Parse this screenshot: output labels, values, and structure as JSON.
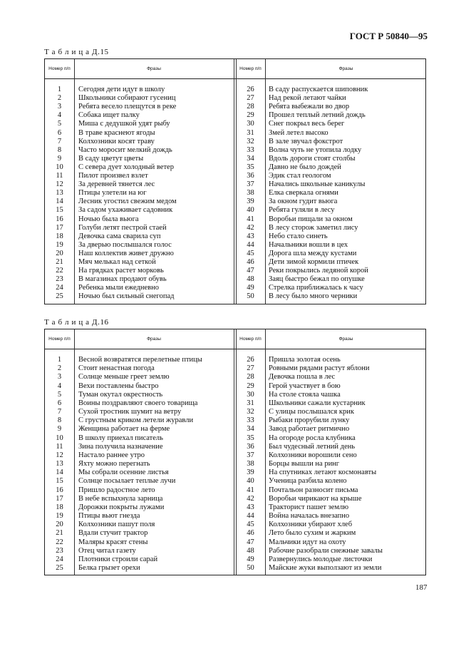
{
  "document_code": "ГОСТ Р 50840—95",
  "page_number": "187",
  "tables": [
    {
      "label": "Т а б л и ц а  Д.15",
      "col_num": "Номер п/п",
      "col_phrase": "Фразы",
      "rows": [
        [
          "1",
          "Сегодня дети идут в школу"
        ],
        [
          "2",
          "Школьники собирают гусениц"
        ],
        [
          "3",
          "Ребята весело плещутся в реке"
        ],
        [
          "4",
          "Собака ищет палку"
        ],
        [
          "5",
          "Миша с дедушкой удят рыбу"
        ],
        [
          "6",
          "В траве краснеют ягоды"
        ],
        [
          "7",
          "Колхозники косят траву"
        ],
        [
          "8",
          "Часто моросит мелкий дождь"
        ],
        [
          "9",
          "В саду цветут цветы"
        ],
        [
          "10",
          "С севера дует холодный ветер"
        ],
        [
          "11",
          "Пилот произвел взлет"
        ],
        [
          "12",
          "За деревней тянется лес"
        ],
        [
          "13",
          "Птицы улетели на юг"
        ],
        [
          "14",
          "Лесник угостил свежим медом"
        ],
        [
          "15",
          "За садом ухаживает садовник"
        ],
        [
          "16",
          "Ночью была вьюга"
        ],
        [
          "17",
          "Голуби летят пестрой стаей"
        ],
        [
          "18",
          "Девочка сама сварила суп"
        ],
        [
          "19",
          "За дверью послышался голос"
        ],
        [
          "20",
          "Наш коллектив живет дружно"
        ],
        [
          "21",
          "Мяч мелькал над сеткой"
        ],
        [
          "22",
          "На грядках растет морковь"
        ],
        [
          "23",
          "В магазинах продают обувь"
        ],
        [
          "24",
          "Ребенка мыли ежедневно"
        ],
        [
          "25",
          "Ночью был сильный снегопад"
        ],
        [
          "26",
          "В саду распускается шиповник"
        ],
        [
          "27",
          "Над рекой летают чайки"
        ],
        [
          "28",
          "Ребята выбежали во двор"
        ],
        [
          "29",
          "Прошел теплый летний дождь"
        ],
        [
          "30",
          "Снег покрыл весь берег"
        ],
        [
          "31",
          "Змей летел высоко"
        ],
        [
          "32",
          "В зале звучал фокстрот"
        ],
        [
          "33",
          "Волна чуть не утопила лодку"
        ],
        [
          "34",
          "Вдоль дороги стоят столбы"
        ],
        [
          "35",
          "Давно не было дождей"
        ],
        [
          "36",
          "Эдик стал геологом"
        ],
        [
          "37",
          "Начались школьные каникулы"
        ],
        [
          "38",
          "Елка сверкала огнями"
        ],
        [
          "39",
          "За окном гудит вьюга"
        ],
        [
          "40",
          "Ребята гуляли в лесу"
        ],
        [
          "41",
          "Воробьи пищали за окном"
        ],
        [
          "42",
          "В лесу сторож заметил лису"
        ],
        [
          "43",
          "Небо стало синеть"
        ],
        [
          "44",
          "Начальники вошли в цех"
        ],
        [
          "45",
          "Дорога шла между кустами"
        ],
        [
          "46",
          "Дети зимой кормили птичек"
        ],
        [
          "47",
          "Реки покрылись ледяной корой"
        ],
        [
          "48",
          "Заяц быстро бежал по опушке"
        ],
        [
          "49",
          "Стрелка приближалась к часу"
        ],
        [
          "50",
          "В лесу было много черники"
        ]
      ]
    },
    {
      "label": "Т а б л и ц а  Д.16",
      "col_num": "Номер п/п",
      "col_phrase": "Фразы",
      "rows": [
        [
          "1",
          "Весной возвратятся перелетные птицы"
        ],
        [
          "2",
          "Стоит ненастная погода"
        ],
        [
          "3",
          "Солнце меньше греет землю"
        ],
        [
          "4",
          "Вехи поставлены быстро"
        ],
        [
          "5",
          "Туман окутал окрестность"
        ],
        [
          "6",
          "Воины поздравляют своего товарища"
        ],
        [
          "7",
          "Сухой тростник шумит на ветру"
        ],
        [
          "8",
          "С грустным криком летели журавли"
        ],
        [
          "9",
          "Женщина работает на ферме"
        ],
        [
          "10",
          "В школу приехал писатель"
        ],
        [
          "11",
          "Зина получила назначение"
        ],
        [
          "12",
          "Настало раннее утро"
        ],
        [
          "13",
          "Яхту можно перегнать"
        ],
        [
          "14",
          "Мы собрали осенние листья"
        ],
        [
          "15",
          "Солнце посылает теплые лучи"
        ],
        [
          "16",
          "Пришло радостное лето"
        ],
        [
          "17",
          "В небе вспыхнула зарница"
        ],
        [
          "18",
          "Дорожки покрыты лужами"
        ],
        [
          "19",
          "Птицы вьют гнезда"
        ],
        [
          "20",
          "Колхозники пашут поля"
        ],
        [
          "21",
          "Вдали стучит трактор"
        ],
        [
          "22",
          "Маляры красят стены"
        ],
        [
          "23",
          "Отец читал газету"
        ],
        [
          "24",
          "Плотники строили сарай"
        ],
        [
          "25",
          "Белка грызет орехи"
        ],
        [
          "26",
          "Пришла золотая осень"
        ],
        [
          "27",
          "Ровными рядами растут яблони"
        ],
        [
          "28",
          "Девочка пошла в лес"
        ],
        [
          "29",
          "Герой участвует в бою"
        ],
        [
          "30",
          "На столе стояла чашка"
        ],
        [
          "31",
          "Школьники сажали кустарник"
        ],
        [
          "32",
          "С улицы послышался крик"
        ],
        [
          "33",
          "Рыбаки прорубили лунку"
        ],
        [
          "34",
          "Завод работает ритмично"
        ],
        [
          "35",
          "На огороде росла клубника"
        ],
        [
          "36",
          "Был чудесный летний день"
        ],
        [
          "37",
          "Колхозники ворошили сено"
        ],
        [
          "38",
          "Борцы вышли на ринг"
        ],
        [
          "39",
          "На спутниках летают космонавты"
        ],
        [
          "40",
          "Ученица разбила колено"
        ],
        [
          "41",
          "Почтальон разносит письма"
        ],
        [
          "42",
          "Воробьи чирикают на крыше"
        ],
        [
          "43",
          "Тракторист пашет землю"
        ],
        [
          "44",
          "Война началась внезапно"
        ],
        [
          "45",
          "Колхозники убирают хлеб"
        ],
        [
          "46",
          "Лето было сухим и жарким"
        ],
        [
          "47",
          "Мальчики идут на охоту"
        ],
        [
          "48",
          "Рабочие разобрали снежные завалы"
        ],
        [
          "49",
          "Развернулись молодые листочки"
        ],
        [
          "50",
          "Майские жуки выползают из земли"
        ]
      ]
    }
  ]
}
